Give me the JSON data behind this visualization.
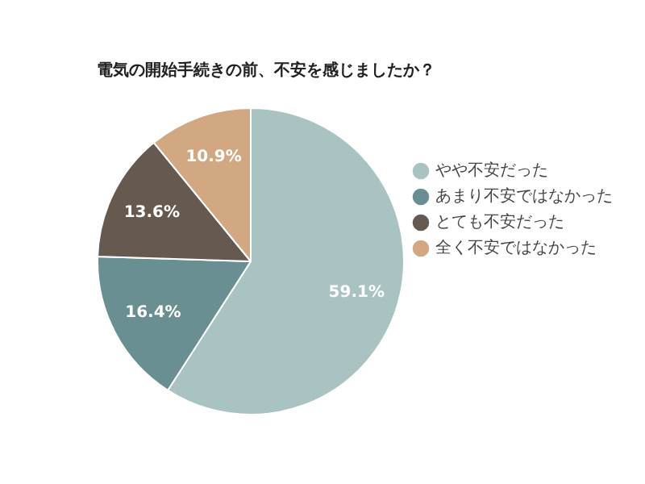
{
  "chart_data": {
    "type": "pie",
    "title": "電気の開始手続きの前、不安を感じましたか？",
    "categories": [
      "やや不安だった",
      "あまり不安ではなかった",
      "とても不安だった",
      "全く不安ではなかった"
    ],
    "values": [
      59.1,
      16.4,
      13.6,
      10.9
    ],
    "colors": [
      "#a9c3c3",
      "#6a8f92",
      "#665a50",
      "#d2a882"
    ],
    "value_labels": [
      "59.1%",
      "16.4%",
      "13.6%",
      "10.9%"
    ],
    "legend": "right"
  }
}
